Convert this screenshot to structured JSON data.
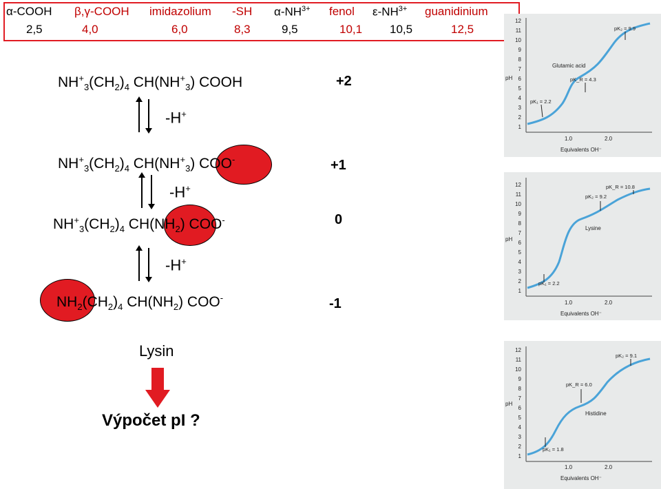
{
  "pka_table": {
    "headers": [
      "α-COOH",
      "β,γ-COOH",
      "imidazolium",
      "-SH",
      "α-NH",
      "fenol",
      "ε-NH",
      "guanidinium"
    ],
    "header_sup": {
      "alpha_nh": "3+",
      "epsilon_nh": "3+"
    },
    "values": [
      "2,5",
      "4,0",
      "6,0",
      "8,3",
      "9,5",
      "10,1",
      "10,5",
      "12,5"
    ],
    "border_color": "#e11b22",
    "text_color": "#c00000"
  },
  "species": [
    {
      "parts": [
        "NH",
        "+",
        "3",
        "(CH",
        "2",
        ")",
        "4",
        " CH(NH",
        "+",
        "3",
        ") COOH"
      ],
      "charge": "+2"
    },
    {
      "parts": [
        "NH",
        "+",
        "3",
        "(CH",
        "2",
        ")",
        "4",
        " CH(NH",
        "+",
        "3",
        ") COO",
        "-"
      ],
      "charge": "+1"
    },
    {
      "parts": [
        "NH",
        "+",
        "3",
        "(CH",
        "2",
        ")",
        "4",
        " CH(NH",
        "2",
        ") COO",
        "-"
      ],
      "charge": "0"
    },
    {
      "parts": [
        "NH",
        "2",
        "(CH",
        "2",
        ")",
        "4",
        " CH(NH",
        "2",
        ") COO",
        "-"
      ],
      "charge": "-1"
    }
  ],
  "deprotonation_label": {
    "minus": "-H",
    "plus": "+"
  },
  "amino_acid_name": "Lysin",
  "question": "Výpočet pI ?",
  "highlight_color": "#e11b22",
  "titration_curves": [
    {
      "name": "Glutamic acid",
      "y_axis_label": "pH",
      "y_ticks": [
        "1",
        "2",
        "3",
        "4",
        "5",
        "6",
        "7",
        "8",
        "9",
        "10",
        "11",
        "12"
      ],
      "x_ticks": [
        "1.0",
        "2.0"
      ],
      "x_axis_label": "Equivalents OH⁻",
      "annotations": [
        "pK₂ = 9.9",
        "pK_R = 4.3",
        "pK₁ = 2.2"
      ]
    },
    {
      "name": "Lysine",
      "y_axis_label": "pH",
      "y_ticks": [
        "1",
        "2",
        "3",
        "4",
        "5",
        "6",
        "7",
        "8",
        "9",
        "10",
        "11",
        "12"
      ],
      "x_ticks": [
        "1.0",
        "2.0"
      ],
      "x_axis_label": "Equivalents OH⁻",
      "annotations": [
        "pK_R = 10.8",
        "pK₂ = 9.2",
        "pK₁ = 2.2"
      ]
    },
    {
      "name": "Histidine",
      "y_axis_label": "pH",
      "y_ticks": [
        "1",
        "2",
        "3",
        "4",
        "5",
        "6",
        "7",
        "8",
        "9",
        "10",
        "11",
        "12"
      ],
      "x_ticks": [
        "1.0",
        "2.0"
      ],
      "x_axis_label": "Equivalents OH⁻",
      "annotations": [
        "pK₂ = 9.1",
        "pK_R = 6.0",
        "pK₁ = 1.8"
      ]
    }
  ]
}
